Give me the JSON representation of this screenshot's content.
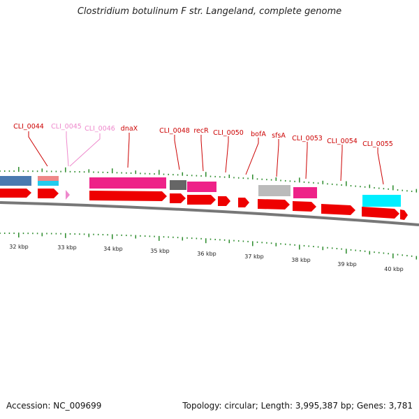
{
  "title": "Clostridium botulinum F str. Langeland, complete genome",
  "accession": "Accession: NC_009699",
  "topology": "Topology: circular; Length: 3,995,387 bp; Genes: 3,781",
  "colors": {
    "cds": "#ee0000",
    "label": "#cc0000",
    "pseudo_label": "#ee88cc",
    "tick": "#2a8a2a",
    "backbone": "#777777"
  },
  "gene_labels": [
    {
      "text": "CLI_0044",
      "color": "#cc0000"
    },
    {
      "text": "CLI_0045",
      "color": "#ee88cc"
    },
    {
      "text": "CLI_0046",
      "color": "#ee88cc"
    },
    {
      "text": "dnaX",
      "color": "#cc0000"
    },
    {
      "text": "CLI_0048",
      "color": "#cc0000"
    },
    {
      "text": "recR",
      "color": "#cc0000"
    },
    {
      "text": "CLI_0050",
      "color": "#cc0000"
    },
    {
      "text": "bofA",
      "color": "#cc0000"
    },
    {
      "text": "sfsA",
      "color": "#cc0000"
    },
    {
      "text": "CLI_0053",
      "color": "#cc0000"
    },
    {
      "text": "CLI_0054",
      "color": "#cc0000"
    },
    {
      "text": "CLI_0055",
      "color": "#cc0000"
    }
  ],
  "kbp_labels": [
    "32 kbp",
    "33 kbp",
    "34 kbp",
    "35 kbp",
    "36 kbp",
    "37 kbp",
    "38 kbp",
    "39 kbp",
    "40 kbp"
  ]
}
